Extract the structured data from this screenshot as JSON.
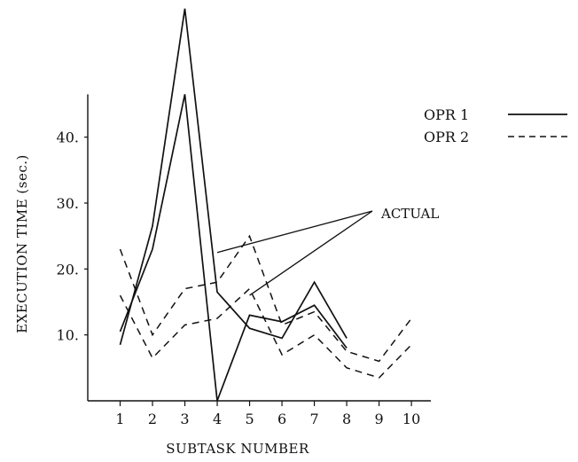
{
  "chart_data": {
    "type": "line",
    "title": "",
    "xlabel": "SUBTASK NUMBER",
    "ylabel": "EXECUTION TIME (sec.)",
    "x": [
      1,
      2,
      3,
      4,
      5,
      6,
      7,
      8,
      9,
      10
    ],
    "x_tick_labels": [
      "1",
      "2",
      "3",
      "4",
      "5",
      "6",
      "7",
      "8",
      "9",
      "10"
    ],
    "y_tick_values": [
      10,
      20,
      30,
      40
    ],
    "y_tick_labels": [
      "10.",
      "20.",
      "30.",
      "40."
    ],
    "xlim": [
      0,
      10.6
    ],
    "ylim": [
      0,
      60
    ],
    "grid": false,
    "legend": {
      "placement": "top-right",
      "entries": [
        {
          "label": "OPR 1",
          "style": "solid"
        },
        {
          "label": "OPR 2",
          "style": "dashed"
        }
      ]
    },
    "annotations": [
      {
        "text": "ACTUAL",
        "points_to": [
          [
            4,
            22.5
          ],
          [
            5,
            16
          ]
        ]
      }
    ],
    "series": [
      {
        "label_ref": "OPR 1",
        "style": "solid",
        "x": [
          1,
          2,
          3,
          4,
          5,
          6,
          7,
          8
        ],
        "values": [
          8.5,
          26.5,
          59.5,
          16.5,
          11,
          9.5,
          18,
          9.5
        ]
      },
      {
        "label_ref": "OPR 1",
        "style": "solid",
        "x": [
          1,
          2,
          3,
          4,
          5,
          6,
          7,
          8
        ],
        "values": [
          10.5,
          23,
          46.5,
          0,
          13,
          12,
          14.5,
          8
        ]
      },
      {
        "label_ref": "OPR 2",
        "style": "dashed",
        "x": [
          1,
          2,
          3,
          4,
          5,
          6,
          7,
          8,
          9,
          10
        ],
        "values": [
          23,
          10,
          17,
          18,
          25,
          11.5,
          13.5,
          7.5,
          6,
          12.5
        ]
      },
      {
        "label_ref": "OPR 2",
        "style": "dashed",
        "x": [
          1,
          2,
          3,
          4,
          5,
          6,
          7,
          8,
          9,
          10
        ],
        "values": [
          16,
          6.5,
          11.5,
          12.5,
          17,
          7,
          10,
          5,
          3.5,
          8.5
        ]
      }
    ]
  }
}
